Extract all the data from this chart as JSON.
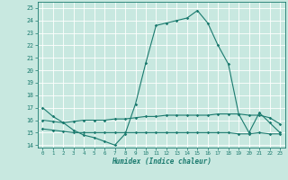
{
  "title": "",
  "xlabel": "Humidex (Indice chaleur)",
  "ylabel": "",
  "background_color": "#c8e8e0",
  "grid_color": "#b0d8cf",
  "line_color": "#1a7a6e",
  "xlim": [
    -0.5,
    23.5
  ],
  "ylim": [
    13.8,
    25.5
  ],
  "yticks": [
    14,
    15,
    16,
    17,
    18,
    19,
    20,
    21,
    22,
    23,
    24,
    25
  ],
  "xticks": [
    0,
    1,
    2,
    3,
    4,
    5,
    6,
    7,
    8,
    9,
    10,
    11,
    12,
    13,
    14,
    15,
    16,
    17,
    18,
    19,
    20,
    21,
    22,
    23
  ],
  "line1_x": [
    0,
    1,
    2,
    3,
    4,
    5,
    6,
    7,
    8,
    9,
    10,
    11,
    12,
    13,
    14,
    15,
    16,
    17,
    18,
    19,
    20,
    21,
    22,
    23
  ],
  "line1_y": [
    17.0,
    16.3,
    15.8,
    15.2,
    14.8,
    14.6,
    14.3,
    14.0,
    14.9,
    17.3,
    20.6,
    23.6,
    23.8,
    24.0,
    24.2,
    24.8,
    23.8,
    22.0,
    20.5,
    16.5,
    15.0,
    16.6,
    15.8,
    15.0
  ],
  "line2_x": [
    0,
    1,
    2,
    3,
    4,
    5,
    6,
    7,
    8,
    9,
    10,
    11,
    12,
    13,
    14,
    15,
    16,
    17,
    18,
    19,
    20,
    21,
    22,
    23
  ],
  "line2_y": [
    16.0,
    15.9,
    15.8,
    15.9,
    16.0,
    16.0,
    16.0,
    16.1,
    16.1,
    16.2,
    16.3,
    16.3,
    16.4,
    16.4,
    16.4,
    16.4,
    16.4,
    16.5,
    16.5,
    16.5,
    16.4,
    16.4,
    16.2,
    15.7
  ],
  "line3_x": [
    0,
    1,
    2,
    3,
    4,
    5,
    6,
    7,
    8,
    9,
    10,
    11,
    12,
    13,
    14,
    15,
    16,
    17,
    18,
    19,
    20,
    21,
    22,
    23
  ],
  "line3_y": [
    15.3,
    15.2,
    15.1,
    15.0,
    15.0,
    15.0,
    15.0,
    15.0,
    15.0,
    15.0,
    15.0,
    15.0,
    15.0,
    15.0,
    15.0,
    15.0,
    15.0,
    15.0,
    15.0,
    14.9,
    14.9,
    15.0,
    14.9,
    14.9
  ]
}
